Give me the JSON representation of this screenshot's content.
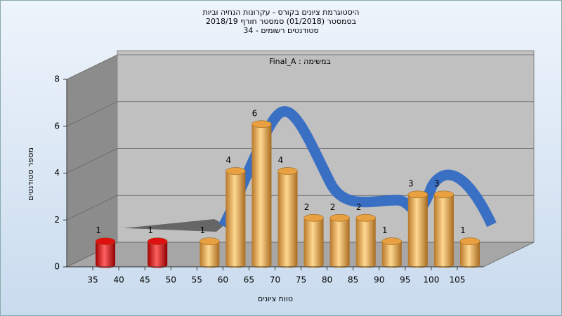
{
  "chart_data": {
    "type": "bar",
    "title_lines": [
      "היסטוגרמת ציונים בקורס - עקרונות הנחיה וביות",
      "בסמסטר  (01/2018)  סמסטר חורף 2018/19",
      "סטודנטים רשומים - 34"
    ],
    "subtitle": "Final_A : במשימה",
    "xlabel": "טווח ציונים",
    "ylabel": "מספר סטודנטים",
    "x": [
      35,
      45,
      55,
      60,
      65,
      70,
      75,
      80,
      85,
      90,
      95,
      100,
      105
    ],
    "values": [
      1,
      1,
      1,
      4,
      6,
      4,
      2,
      2,
      2,
      1,
      3,
      3,
      1
    ],
    "colors": [
      "#e01010",
      "#e01010",
      "#e8a040",
      "#e8a040",
      "#e8a040",
      "#e8a040",
      "#e8a040",
      "#e8a040",
      "#e8a040",
      "#e8a040",
      "#e8a040",
      "#e8a040",
      "#e8a040"
    ],
    "xlim": [
      30,
      110
    ],
    "xticks": [
      35,
      40,
      45,
      50,
      55,
      60,
      65,
      70,
      75,
      80,
      85,
      90,
      95,
      100,
      105
    ],
    "ylim": [
      0,
      8
    ],
    "yticks": [
      0,
      2,
      4,
      6,
      8
    ],
    "grid": true
  }
}
